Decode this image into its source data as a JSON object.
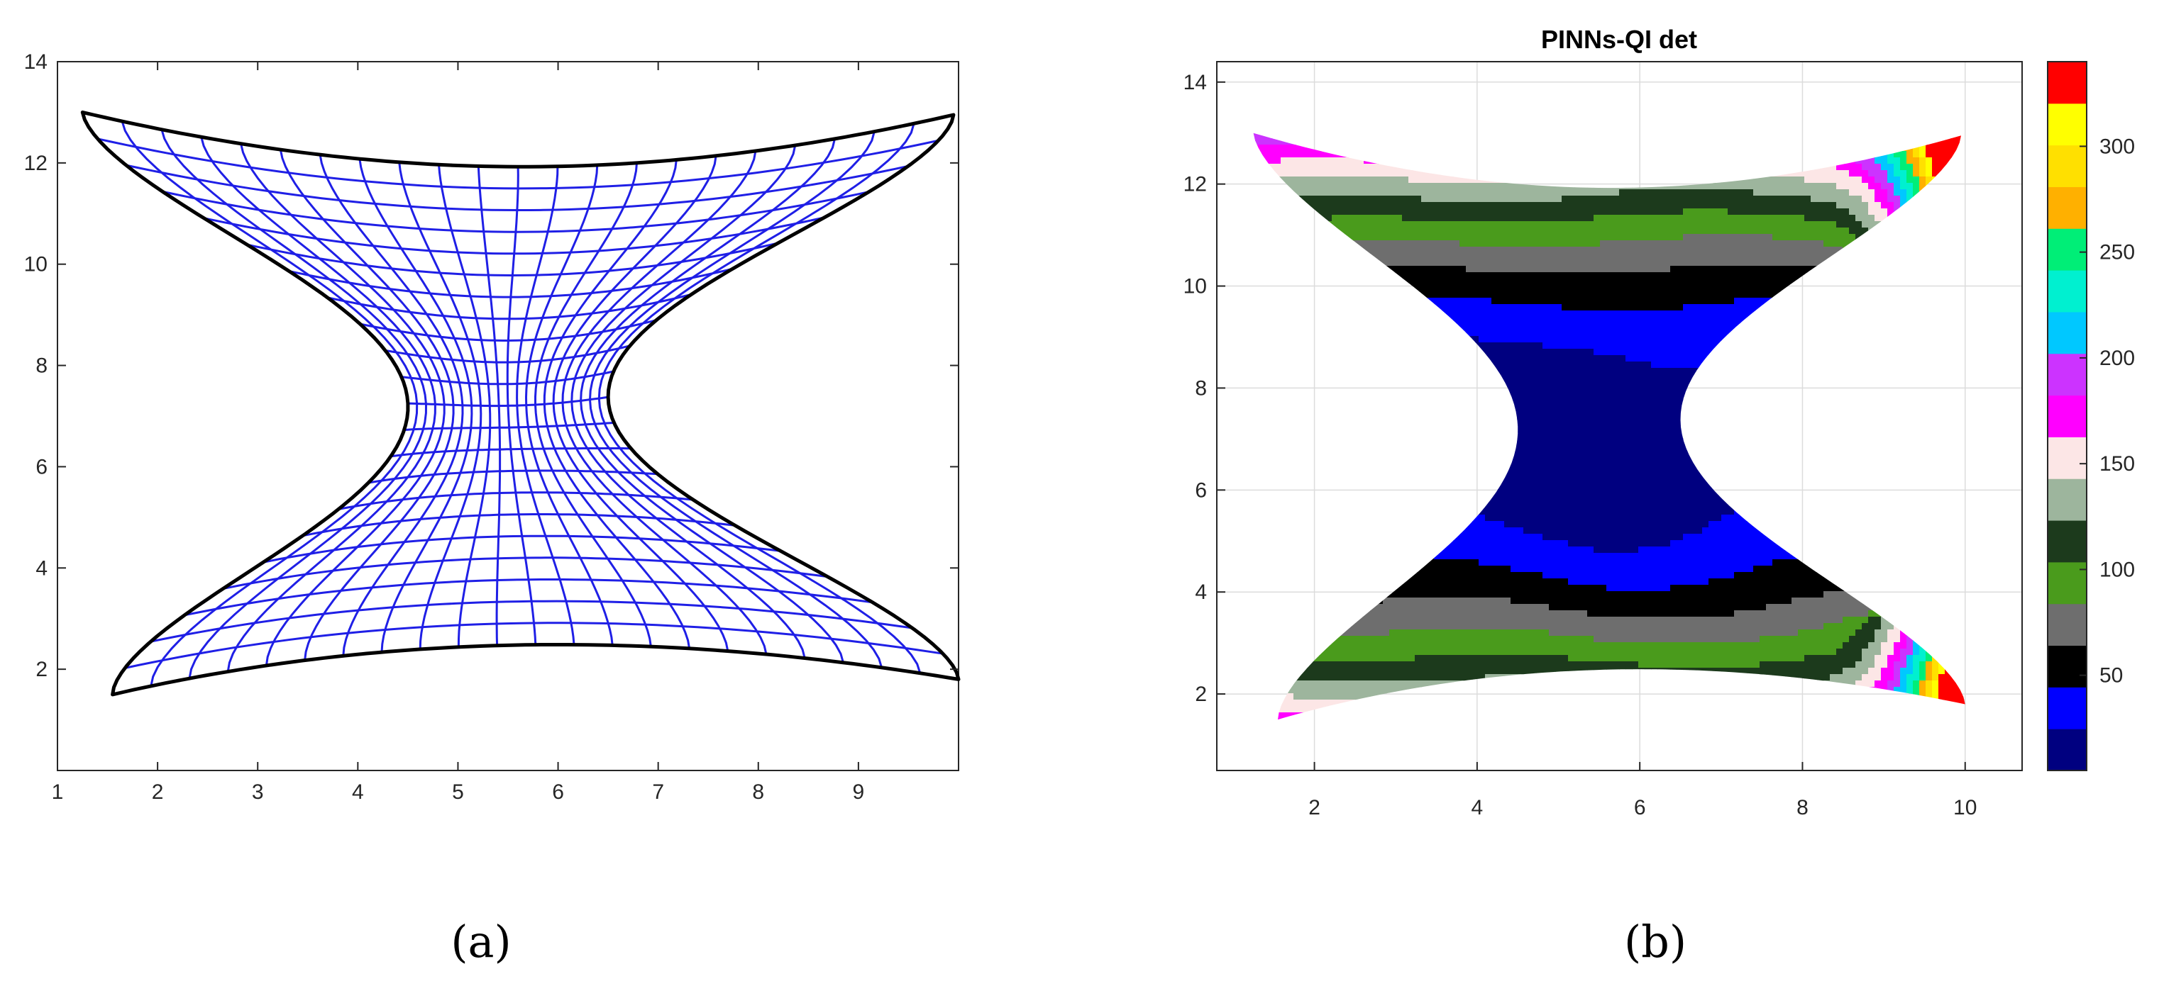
{
  "chart_data": [
    {
      "type": "mesh",
      "title": "",
      "caption": "(a)",
      "xlim": [
        1,
        10
      ],
      "ylim": [
        0,
        14
      ],
      "xticks": [
        1,
        2,
        3,
        4,
        5,
        6,
        7,
        8,
        9
      ],
      "yticks": [
        2,
        4,
        6,
        8,
        10,
        12,
        14
      ],
      "grid": false,
      "boundary_color": "#000000",
      "mesh_color": "#1f1fe6",
      "corners": {
        "top_left": [
          1.25,
          13.0
        ],
        "top_right": [
          9.95,
          12.95
        ],
        "bottom_left": [
          1.55,
          1.5
        ],
        "bottom_right": [
          10.0,
          1.8
        ]
      },
      "top_curve_min_y": 12.0,
      "bottom_curve_max_y": 2.3,
      "left_curve_max_x": 4.5,
      "right_curve_min_x": 6.5
    },
    {
      "type": "filled_contour",
      "title": "PINNs-QI det",
      "caption": "(b)",
      "xlim": [
        0.8,
        10.7
      ],
      "ylim": [
        0.5,
        14.4
      ],
      "xticks": [
        2,
        4,
        6,
        8,
        10
      ],
      "yticks": [
        2,
        4,
        6,
        8,
        10,
        12,
        14
      ],
      "grid": true,
      "colorbar": {
        "range": [
          5,
          340
        ],
        "ticks": [
          50,
          100,
          150,
          200,
          250,
          300
        ],
        "colors": [
          "#000080",
          "#0000ff",
          "#000000",
          "#6e6e6e",
          "#4a9b1c",
          "#1c3a1c",
          "#9db59d",
          "#fce6e6",
          "#ff00ff",
          "#cc33ff",
          "#00c8ff",
          "#00f0d0",
          "#00ee77",
          "#ffb000",
          "#ffe000",
          "#ffff00",
          "#ff0000"
        ]
      }
    }
  ]
}
